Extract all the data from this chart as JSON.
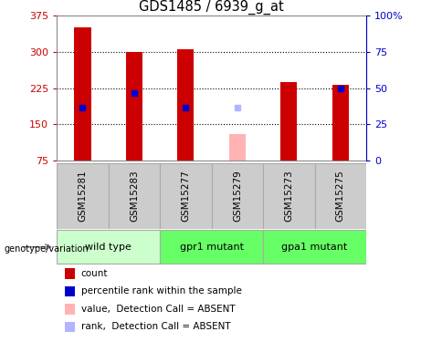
{
  "title": "GDS1485 / 6939_g_at",
  "samples": [
    "GSM15281",
    "GSM15283",
    "GSM15277",
    "GSM15279",
    "GSM15273",
    "GSM15275"
  ],
  "bar_bottom": 75,
  "ylim": [
    75,
    375
  ],
  "y2lim": [
    0,
    100
  ],
  "yticks": [
    75,
    150,
    225,
    300,
    375
  ],
  "y2ticks": [
    0,
    25,
    50,
    75,
    100
  ],
  "count_values": [
    350,
    300,
    305,
    null,
    237,
    232
  ],
  "count_color": "#cc0000",
  "absent_value_values": [
    null,
    null,
    null,
    130,
    null,
    null
  ],
  "absent_value_color": "#ffb3b3",
  "rank_values": [
    185,
    215,
    185,
    null,
    null,
    225
  ],
  "rank_color": "#0000cc",
  "absent_rank_values": [
    null,
    null,
    null,
    185,
    null,
    null
  ],
  "absent_rank_color": "#b3b3ff",
  "bar_width": 0.32,
  "grid_color": "#000000",
  "sample_box_color": "#cccccc",
  "group_configs": [
    {
      "label": "wild type",
      "start": 0,
      "end": 1,
      "color": "#ccffcc"
    },
    {
      "label": "gpr1 mutant",
      "start": 2,
      "end": 3,
      "color": "#66ff66"
    },
    {
      "label": "gpa1 mutant",
      "start": 4,
      "end": 5,
      "color": "#66ff66"
    }
  ],
  "legend_items": [
    {
      "label": "count",
      "color": "#cc0000"
    },
    {
      "label": "percentile rank within the sample",
      "color": "#0000cc"
    },
    {
      "label": "value,  Detection Call = ABSENT",
      "color": "#ffb3b3"
    },
    {
      "label": "rank,  Detection Call = ABSENT",
      "color": "#b3b3ff"
    }
  ],
  "ylabel_left_color": "#cc0000",
  "ylabel_right_color": "#0000cc",
  "genotype_label": "genotype/variation"
}
